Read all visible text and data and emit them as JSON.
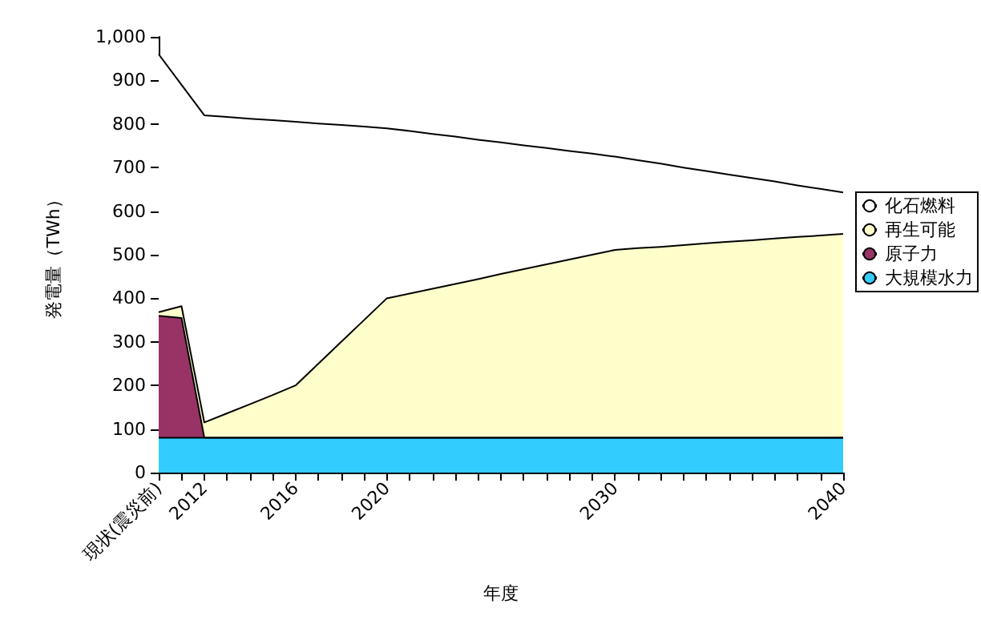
{
  "chart_data": {
    "type": "area",
    "stacked": true,
    "xlabel": "年度",
    "ylabel": "発電量（TWh）",
    "categories": [
      "現状(震災前)",
      null,
      "2012",
      null,
      null,
      null,
      "2016",
      null,
      null,
      null,
      "2020",
      null,
      null,
      null,
      null,
      null,
      null,
      null,
      null,
      null,
      "2030",
      null,
      null,
      null,
      null,
      null,
      null,
      null,
      null,
      null,
      "2040"
    ],
    "series": [
      {
        "name": "大規模水力",
        "color": "#33ccff",
        "values": [
          80,
          80,
          80,
          80,
          80,
          80,
          80,
          80,
          80,
          80,
          80,
          80,
          80,
          80,
          80,
          80,
          80,
          80,
          80,
          80,
          80,
          80,
          80,
          80,
          80,
          80,
          80,
          80,
          80,
          80,
          80
        ]
      },
      {
        "name": "原子力",
        "color": "#993366",
        "values": [
          280,
          275,
          0,
          0,
          0,
          0,
          0,
          0,
          0,
          0,
          0,
          0,
          0,
          0,
          0,
          0,
          0,
          0,
          0,
          0,
          0,
          0,
          0,
          0,
          0,
          0,
          0,
          0,
          0,
          0,
          0
        ]
      },
      {
        "name": "再生可能",
        "color": "#ffffcc",
        "values": [
          8,
          27,
          35,
          56,
          77,
          98,
          120,
          170,
          220,
          270,
          320,
          331,
          342,
          353,
          364,
          376,
          387,
          398,
          409,
          420,
          431,
          435,
          438,
          442,
          446,
          450,
          453,
          457,
          461,
          464,
          468
        ]
      },
      {
        "name": "化石燃料",
        "color": "#ffffff",
        "values": [
          592,
          508,
          705,
          680,
          655,
          631,
          605,
          551,
          498,
          444,
          390,
          373,
          355,
          338,
          320,
          302,
          284,
          267,
          249,
          232,
          214,
          202,
          191,
          178,
          166,
          154,
          143,
          131,
          118,
          107,
          95
        ]
      }
    ],
    "ylim": [
      0,
      1000
    ],
    "yticks": [
      0,
      100,
      200,
      300,
      400,
      500,
      600,
      700,
      800,
      900,
      {
        "value": 1000,
        "label": "1,000"
      }
    ],
    "grid": false,
    "legend": "right"
  }
}
